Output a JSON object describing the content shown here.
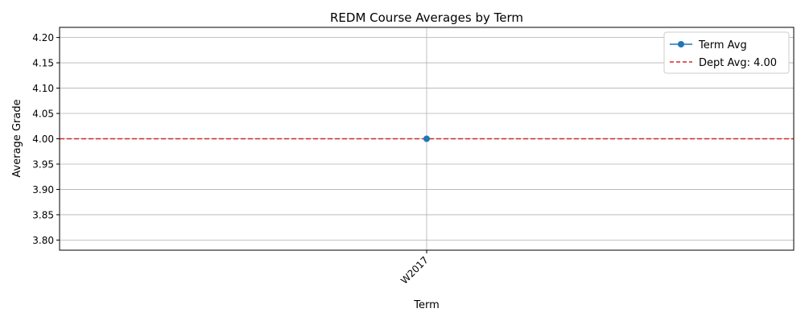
{
  "chart_data": {
    "type": "line",
    "title": "REDM Course Averages by Term",
    "xlabel": "Term",
    "ylabel": "Average Grade",
    "categories": [
      "W2017"
    ],
    "series": [
      {
        "name": "Term Avg",
        "values": [
          4.0
        ],
        "color": "#1f77b4",
        "marker": "circle"
      }
    ],
    "reference_lines": [
      {
        "name": "Dept Avg: 4.00",
        "value": 4.0,
        "color": "#d62728",
        "style": "dashed"
      }
    ],
    "ylim": [
      3.78,
      4.22
    ],
    "yticks": [
      "3.80",
      "3.85",
      "3.90",
      "3.95",
      "4.00",
      "4.05",
      "4.10",
      "4.15",
      "4.20"
    ],
    "grid": true,
    "legend_position": "top-right"
  }
}
